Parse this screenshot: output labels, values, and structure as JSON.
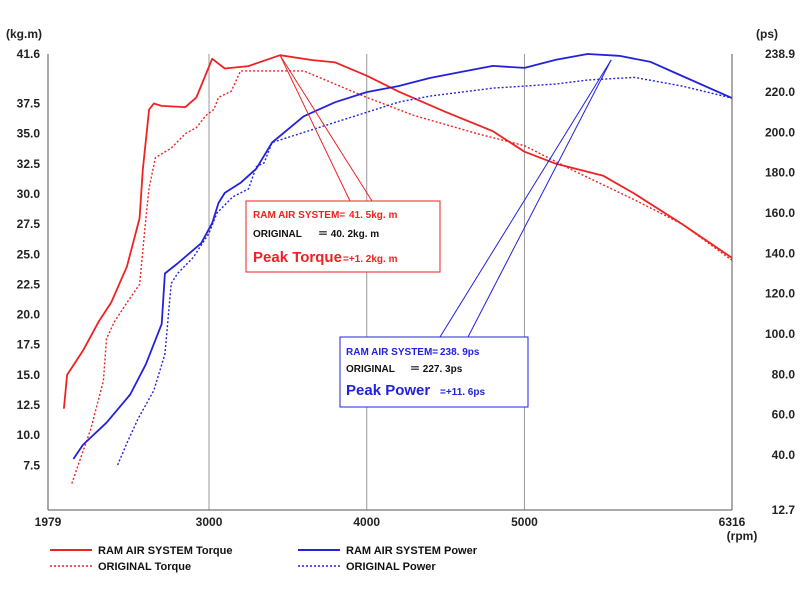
{
  "chart_data": {
    "type": "line",
    "units": {
      "left": "(kg.m)",
      "right": "(ps)",
      "x": "(rpm)"
    },
    "grid": "vertical lines at x ticks",
    "xlim": [
      1979,
      6316
    ],
    "ylim_left": [
      3.8,
      41.6
    ],
    "ylim_right": [
      12.7,
      238.9
    ],
    "x_ticks": [
      1979,
      3000,
      4000,
      5000,
      6316
    ],
    "y_left_ticks": [
      41.6,
      37.5,
      35.0,
      32.5,
      30.0,
      27.5,
      25.0,
      22.5,
      20.0,
      17.5,
      15.0,
      12.5,
      10.0,
      7.5
    ],
    "y_right_ticks": [
      238.9,
      220.0,
      200.0,
      180.0,
      160.0,
      140.0,
      120.0,
      100.0,
      80.0,
      60.0,
      40.0,
      12.7
    ],
    "x_tick_labels": [
      "1979",
      "3000",
      "4000",
      "5000",
      "6316"
    ],
    "y_left_tick_labels": [
      "41.6",
      "37.5",
      "35.0",
      "32.5",
      "30.0",
      "27.5",
      "25.0",
      "22.5",
      "20.0",
      "17.5",
      "15.0",
      "12.5",
      "10.0",
      "7.5"
    ],
    "y_right_tick_labels": [
      "238.9",
      "220.0",
      "200.0",
      "180.0",
      "160.0",
      "140.0",
      "120.0",
      "100.0",
      "80.0",
      "60.0",
      "40.0",
      "12.7"
    ],
    "legend": {
      "placement": "bottom",
      "entries": [
        "RAM AIR SYSTEM Torque",
        "ORIGINAL Torque",
        "RAM AIR SYSTEM Power",
        "ORIGINAL Power"
      ]
    },
    "series": [
      {
        "name": "RAM AIR SYSTEM Torque",
        "axis": "left",
        "color": "#ee2222",
        "dash": "solid",
        "x": [
          2080,
          2100,
          2200,
          2300,
          2380,
          2480,
          2560,
          2580,
          2620,
          2650,
          2700,
          2850,
          2920,
          3020,
          3100,
          3250,
          3450,
          3650,
          3800,
          4000,
          4200,
          4500,
          4800,
          5000,
          5200,
          5500,
          5700,
          6000,
          6316
        ],
        "y": [
          12.2,
          15.0,
          17.0,
          19.4,
          21.0,
          24.0,
          28.0,
          32.0,
          37.0,
          37.5,
          37.3,
          37.2,
          38.0,
          41.2,
          40.4,
          40.6,
          41.5,
          41.1,
          40.9,
          39.8,
          38.5,
          36.8,
          35.2,
          33.5,
          32.5,
          31.5,
          30.0,
          27.5,
          24.7
        ]
      },
      {
        "name": "ORIGINAL Torque",
        "axis": "left",
        "color": "#ee2222",
        "dash": "dotted",
        "x": [
          2130,
          2250,
          2330,
          2350,
          2400,
          2480,
          2560,
          2600,
          2620,
          2660,
          2760,
          2850,
          2920,
          2980,
          3030,
          3060,
          3140,
          3200,
          3600,
          4000,
          4300,
          4700,
          5000,
          5300,
          5700,
          6000,
          6316
        ],
        "y": [
          6.0,
          10.5,
          14.5,
          18.0,
          19.4,
          21.0,
          22.5,
          28.0,
          30.5,
          33.0,
          33.8,
          35.0,
          35.5,
          36.5,
          37.0,
          38.0,
          38.5,
          40.2,
          40.2,
          38.0,
          36.5,
          35.0,
          34.0,
          32.0,
          29.5,
          27.5,
          24.5
        ]
      },
      {
        "name": "RAM AIR SYSTEM Power",
        "axis": "right",
        "color": "#2222dd",
        "dash": "solid",
        "x": [
          2140,
          2200,
          2350,
          2500,
          2600,
          2700,
          2720,
          2800,
          2950,
          3020,
          3060,
          3100,
          3200,
          3300,
          3400,
          3600,
          3800,
          4000,
          4200,
          4400,
          4600,
          4800,
          5000,
          5200,
          5400,
          5600,
          5800,
          6000,
          6316
        ],
        "y": [
          38.0,
          45.0,
          56.0,
          70.0,
          85.0,
          105.0,
          130.0,
          135.0,
          145.0,
          155.0,
          165.0,
          170.0,
          175.0,
          182.0,
          195.0,
          208.0,
          215.0,
          220.0,
          223.0,
          227.0,
          230.0,
          233.0,
          232.0,
          236.0,
          238.9,
          238.0,
          235.0,
          228.0,
          217.0
        ]
      },
      {
        "name": "ORIGINAL Power",
        "axis": "right",
        "color": "#2222dd",
        "dash": "dotted",
        "x": [
          2420,
          2480,
          2550,
          2650,
          2720,
          2760,
          2800,
          2900,
          3000,
          3050,
          3150,
          3250,
          3300,
          3350,
          3400,
          3600,
          3800,
          4000,
          4200,
          4400,
          4600,
          4800,
          5000,
          5200,
          5400,
          5700,
          6000,
          6316
        ],
        "y": [
          35.0,
          46.0,
          58.0,
          72.0,
          90.0,
          125.0,
          130.0,
          138.0,
          150.0,
          160.0,
          168.0,
          172.0,
          183.0,
          185.0,
          195.0,
          200.0,
          205.0,
          210.0,
          215.0,
          218.0,
          220.0,
          222.0,
          223.0,
          224.0,
          226.0,
          227.3,
          223.0,
          217.0
        ]
      }
    ],
    "annotations": [
      {
        "id": "torque",
        "color": "#ee2222",
        "line1_label": "RAM AIR SYSTEM=",
        "line1_value": "41. 5kg. m",
        "line2_label": "ORIGINAL",
        "line2_value": "＝ 40. 2kg. m",
        "line3_label": "Peak Torque",
        "line3_value": "=+1. 2kg. m",
        "target_x": 3450,
        "target_axis": "left",
        "target_y": 41.5
      },
      {
        "id": "power",
        "color": "#2222dd",
        "line1_label": "RAM AIR SYSTEM=",
        "line1_value": "238. 9ps",
        "line2_label": "ORIGINAL",
        "line2_value": "＝ 227. 3ps",
        "line3_label": "Peak Power",
        "line3_value": "=+11. 6ps",
        "target_x": 5550,
        "target_axis": "right",
        "target_y": 236.0
      }
    ]
  }
}
